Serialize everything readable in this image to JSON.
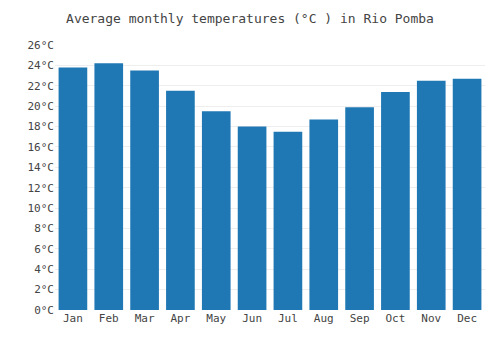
{
  "chart_data": {
    "type": "bar",
    "title": "Average monthly temperatures (°C ) in Rio Pomba",
    "categories": [
      "Jan",
      "Feb",
      "Mar",
      "Apr",
      "May",
      "Jun",
      "Jul",
      "Aug",
      "Sep",
      "Oct",
      "Nov",
      "Dec"
    ],
    "values": [
      23.8,
      24.2,
      23.5,
      21.5,
      19.5,
      18.0,
      17.5,
      18.7,
      19.9,
      21.4,
      22.5,
      22.7
    ],
    "ylim": [
      0,
      26
    ],
    "yticks": [
      {
        "value": 0,
        "label": "0°C"
      },
      {
        "value": 2,
        "label": "2°C"
      },
      {
        "value": 4,
        "label": "4°C"
      },
      {
        "value": 6,
        "label": "6°C"
      },
      {
        "value": 8,
        "label": "8°C"
      },
      {
        "value": 10,
        "label": "10°C"
      },
      {
        "value": 12,
        "label": "12°C"
      },
      {
        "value": 14,
        "label": "14°C"
      },
      {
        "value": 16,
        "label": "16°C"
      },
      {
        "value": 18,
        "label": "18°C"
      },
      {
        "value": 20,
        "label": "20°C"
      },
      {
        "value": 22,
        "label": "22°C"
      },
      {
        "value": 24,
        "label": "24°C"
      },
      {
        "value": 26,
        "label": "26°C"
      }
    ],
    "grid": true
  }
}
